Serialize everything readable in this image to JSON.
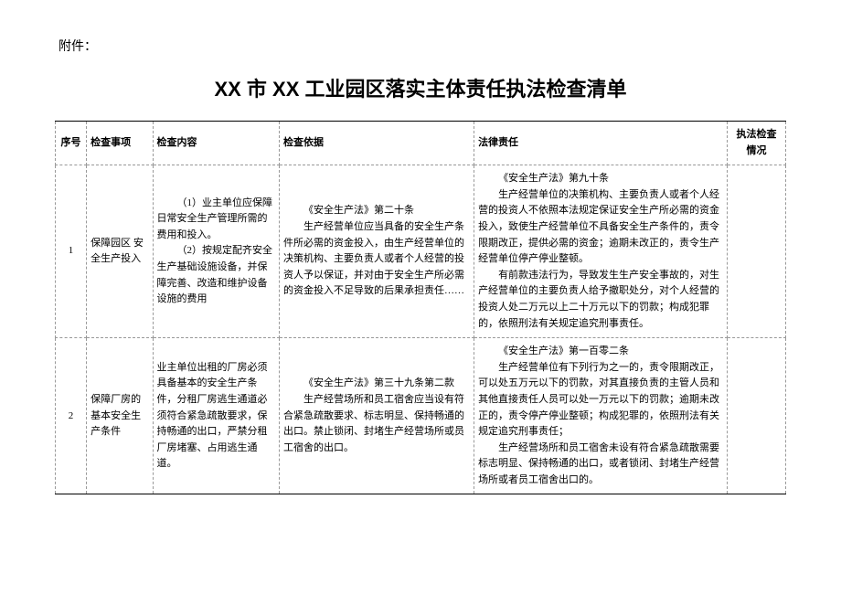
{
  "attachment_label": "附件：",
  "title": "XX 市 XX 工业园区落实主体责任执法检查清单",
  "headers": {
    "seq": "序号",
    "item": "检查事项",
    "content": "检查内容",
    "basis": "检查依据",
    "liability": "法律责任",
    "status": "执法检查情况"
  },
  "rows": [
    {
      "seq": "1",
      "item": "保障园区 安全生产投入",
      "content_p1": "（1）业主单位应保障日常安全生产管理所需的费用和投入。",
      "content_p2": "（2）按规定配齐安全生产基础设施设备，并保障完善、改造和维护设备设施的费用",
      "basis_p1": "《安全生产法》第二十条",
      "basis_p2": "生产经营单位应当具备的安全生产条件所必需的资金投入，由生产经营单位的决策机构、主要负责人或者个人经营的投资人予以保证，并对由于安全生产所必需的资金投入不足导致的后果承担责任……",
      "liability_p1": "《安全生产法》第九十条",
      "liability_p2": "生产经营单位的决策机构、主要负责人或者个人经营的投资人不依照本法规定保证安全生产所必需的资金投入，致使生产经营单位不具备安全生产条件的，责令限期改正，提供必需的资金；逾期未改正的，责令生产经营单位停产停业整顿。",
      "liability_p3": "有前款违法行为，导致发生生产安全事故的，对生产经营单位的主要负责人给予撤职处分，对个人经营的投资人处二万元以上二十万元以下的罚款；构成犯罪的，依照刑法有关规定追究刑事责任。",
      "status": ""
    },
    {
      "seq": "2",
      "item": "保障厂房的基本安全生产条件",
      "content_p1": "业主单位出租的厂房必须具备基本的安全生产条件，分租厂房逃生通道必须符合紧急疏散要求，保持畅通的出口，严禁分租厂房堵塞、占用逃生通道。",
      "content_p2": "",
      "basis_p1": "《安全生产法》第三十九条第二款",
      "basis_p2": "生产经营场所和员工宿舍应当设有符合紧急疏散要求、标志明显、保持畅通的出口。禁止锁闭、封堵生产经营场所或员工宿舍的出口。",
      "liability_p1": "《安全生产法》第一百零二条",
      "liability_p2": "生产经营单位有下列行为之一的，责令限期改正，可以处五万元以下的罚款，对其直接负责的主管人员和其他直接责任人员可以处一万元以下的罚款；逾期未改正的，责令停产停业整顿；构成犯罪的，依照刑法有关规定追究刑事责任；",
      "liability_p3": "生产经营场所和员工宿舍未设有符合紧急疏散需要标志明显、保持畅通的出口，或者锁闭、封堵生产经营场所或者员工宿舍出口的。",
      "status": ""
    }
  ]
}
